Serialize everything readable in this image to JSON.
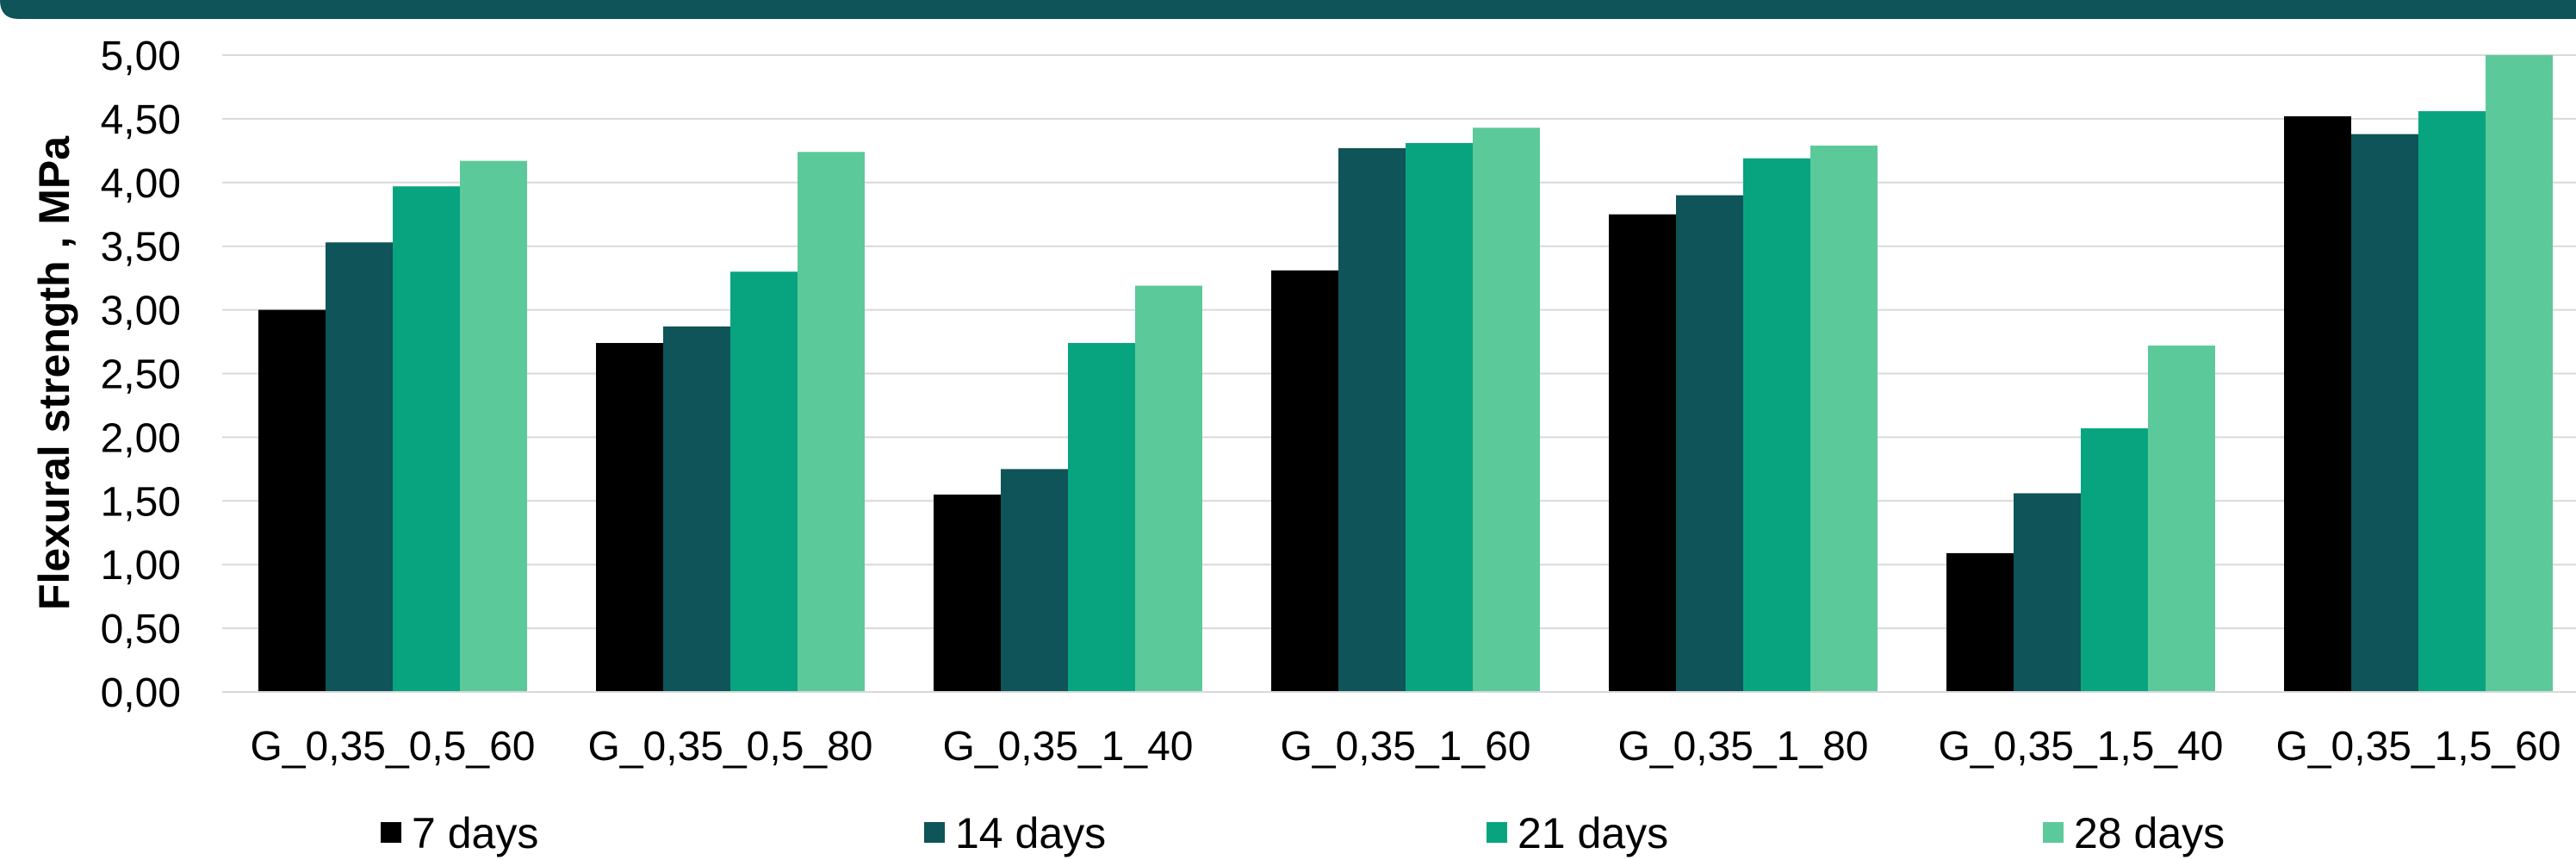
{
  "chart_data": {
    "type": "bar",
    "title": "",
    "xlabel": "",
    "ylabel": "Flexural strength , MPa",
    "ylim": [
      0,
      5
    ],
    "y_tick_step": 0.5,
    "y_tick_labels": [
      "0,00",
      "0,50",
      "1,00",
      "1,50",
      "2,00",
      "2,50",
      "3,00",
      "3,50",
      "4,00",
      "4,50",
      "5,00"
    ],
    "grid": true,
    "legend_position": "bottom",
    "categories": [
      "G_0,35_0,5_60",
      "G_0,35_0,5_80",
      "G_0,35_1_40",
      "G_0,35_1_60",
      "G_0,35_1_80",
      "G_0,35_1,5_40",
      "G_0,35_1,5_60"
    ],
    "series": [
      {
        "name": "7 days",
        "color": "#000000",
        "values": [
          3.0,
          2.74,
          1.55,
          3.31,
          3.75,
          1.09,
          4.52
        ]
      },
      {
        "name": "14 days",
        "color": "#0e5458",
        "values": [
          3.53,
          2.87,
          1.75,
          4.27,
          3.9,
          1.56,
          4.38
        ]
      },
      {
        "name": "21 days",
        "color": "#08a480",
        "values": [
          3.97,
          3.3,
          2.74,
          4.31,
          4.19,
          2.07,
          4.56
        ]
      },
      {
        "name": "28 days",
        "color": "#5cc99a",
        "values": [
          4.17,
          4.24,
          3.19,
          4.43,
          4.29,
          2.72,
          5.0
        ]
      }
    ]
  },
  "colors": {
    "header_band": "#0e5458",
    "gridline": "#d9d9d9"
  }
}
